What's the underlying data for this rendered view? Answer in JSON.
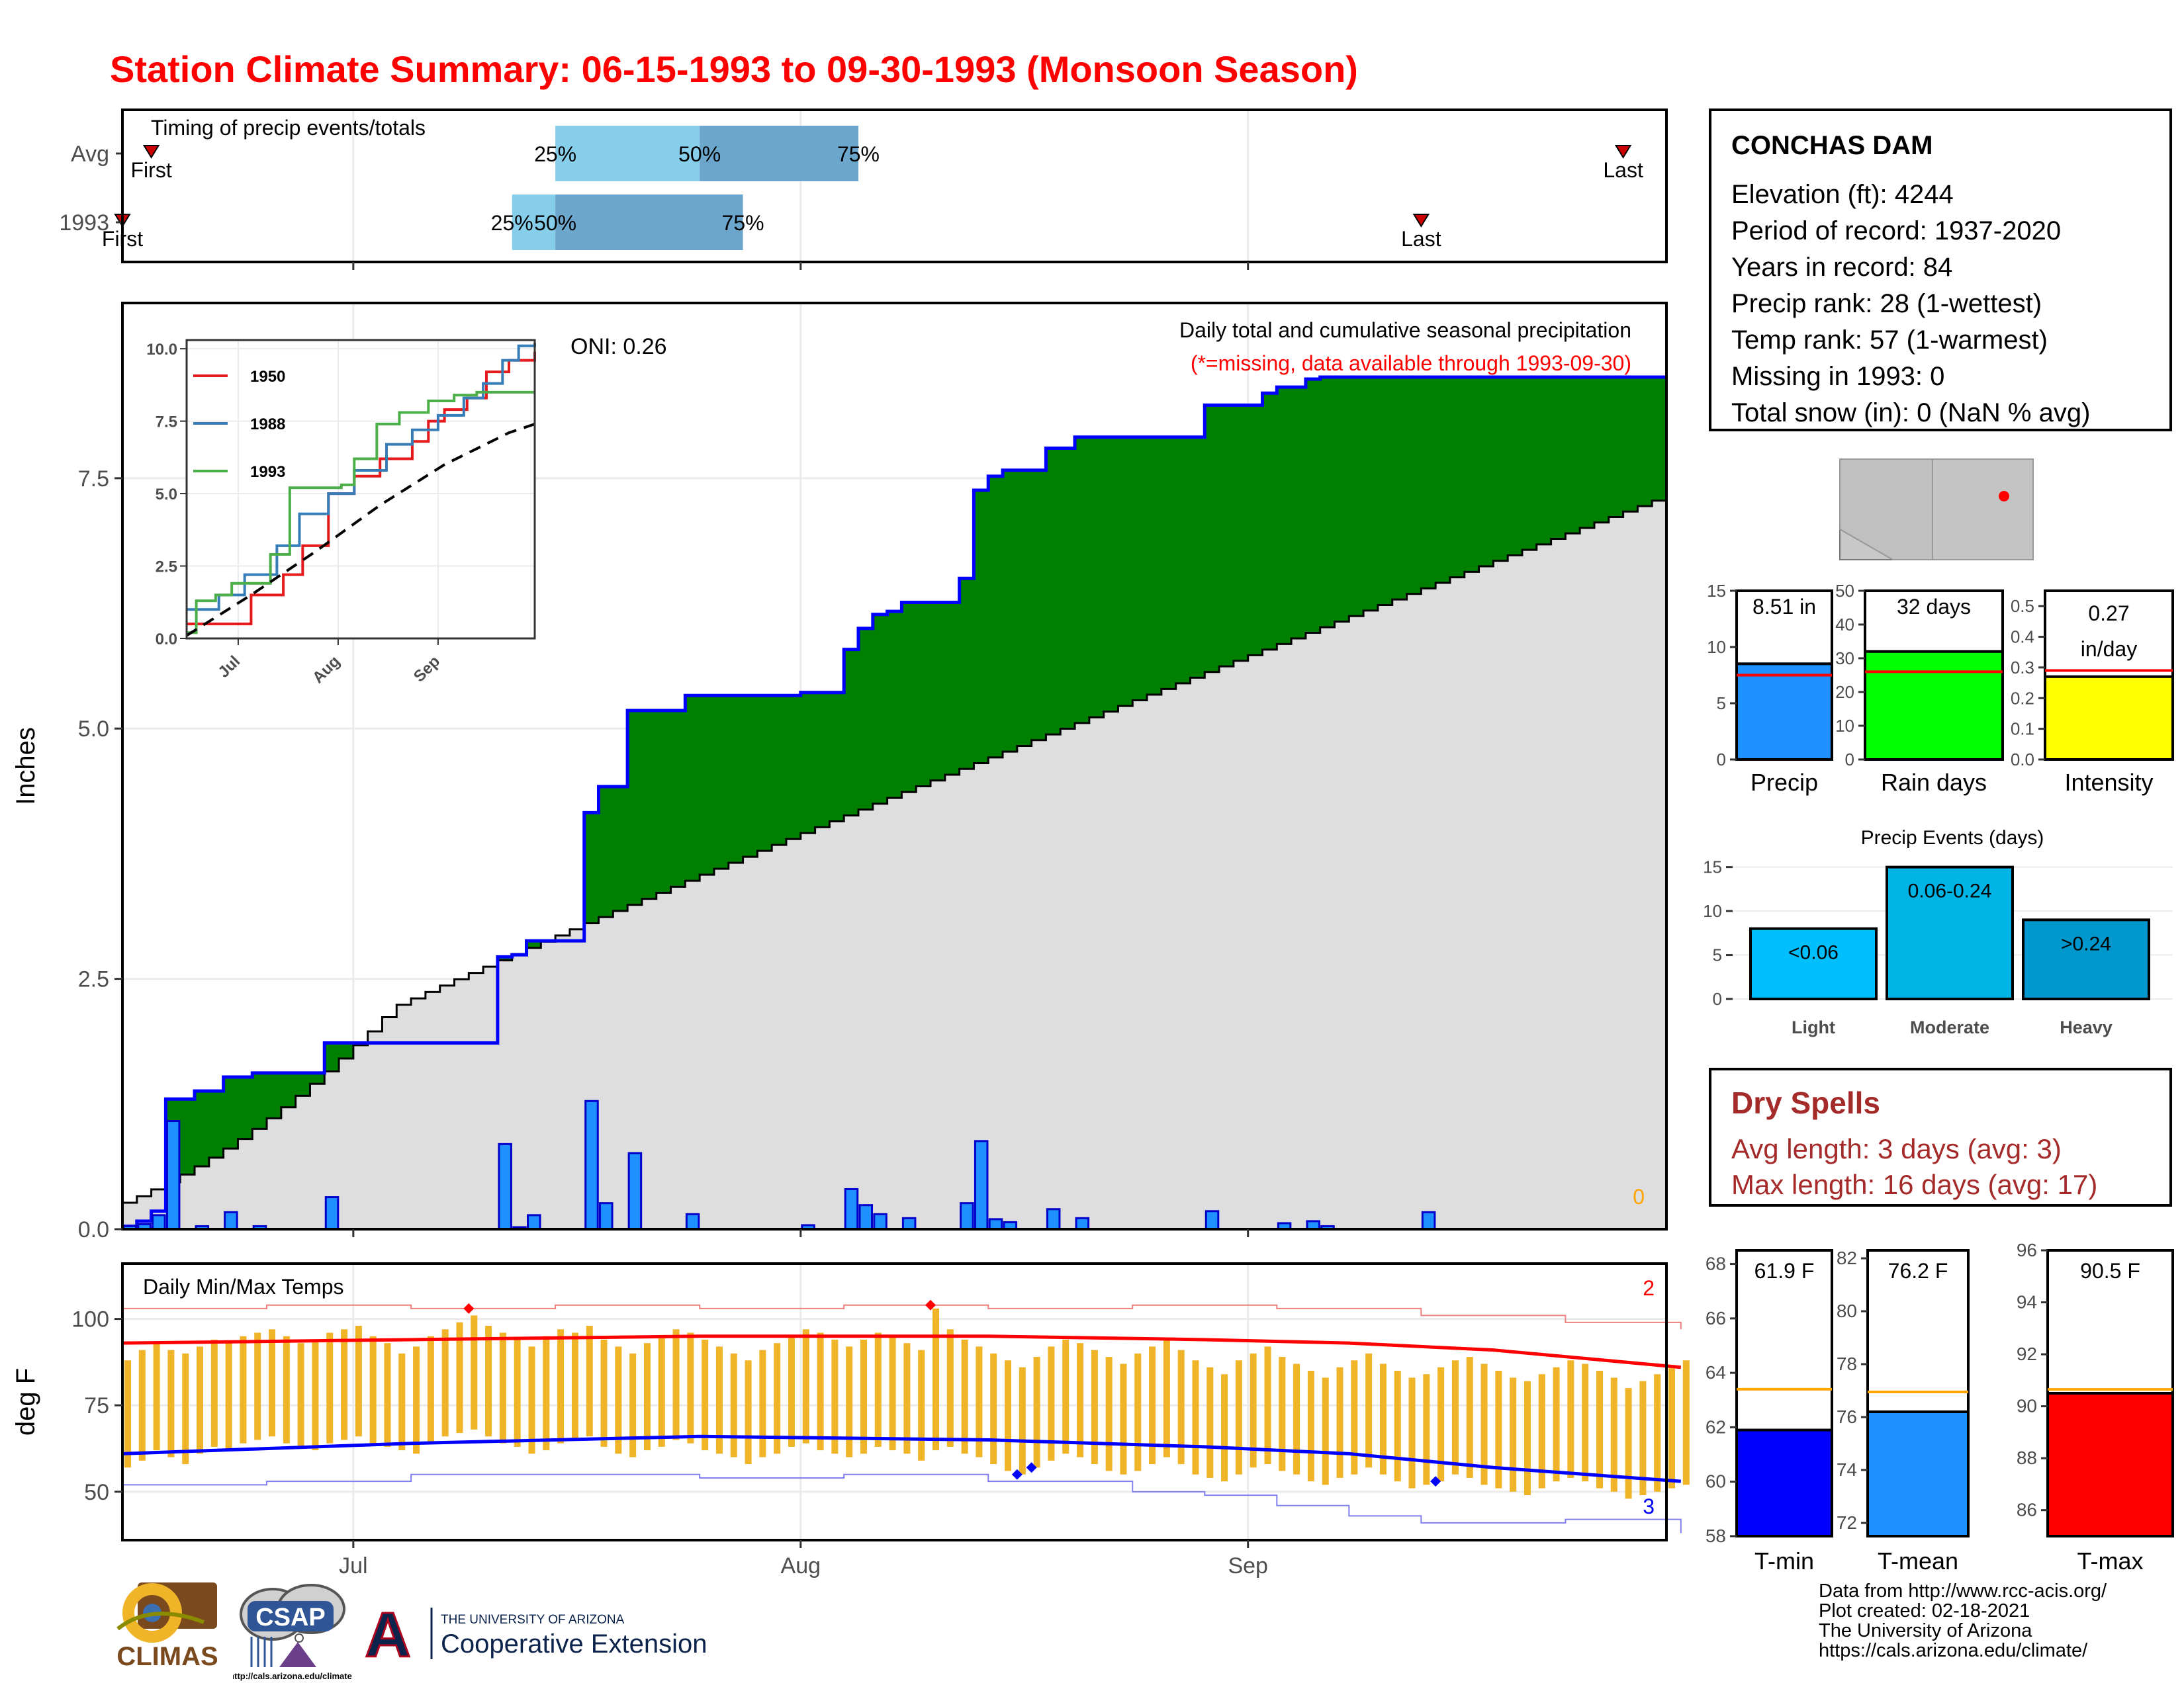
{
  "title": "Station Climate Summary: 06-15-1993 to 09-30-1993 (Monsoon Season)",
  "station": {
    "name": "CONCHAS DAM",
    "rows": [
      "Elevation (ft): 4244",
      "Period of record: 1937-2020",
      "Years in record: 84",
      "Precip rank: 28 (1-wettest)",
      "Temp rank: 57 (1-warmest)",
      "Missing in 1993: 0",
      "Total snow (in): 0 (NaN % avg)"
    ]
  },
  "dry_spells": {
    "heading": "Dry Spells",
    "avg": "Avg length: 3 days (avg: 3)",
    "max": "Max length: 16 days (avg: 17)"
  },
  "credits": [
    "Data from http://www.rcc-acis.org/",
    "Plot created: 02-18-2021",
    "The University of Arizona",
    "https://cals.arizona.edu/climate/"
  ],
  "logos": {
    "climas": "CLIMAS",
    "csap": "CSAP",
    "csap_url": "http://cals.arizona.edu/climate",
    "ua_letter": "A",
    "ua_line1": "THE UNIVERSITY OF ARIZONA",
    "ua_line2": "Cooperative Extension"
  },
  "colors": {
    "title": "#ff0000",
    "green": "#008000",
    "blue_line": "#0000ff",
    "bar": "#1e90ff",
    "light_blue": "#87ceeb",
    "mid_blue": "#6ca6cd",
    "climo_gray": "#dedede",
    "temp_bar": "#f0b429",
    "dry": "#a52a2a"
  },
  "chart_data": [
    {
      "type": "bar",
      "id": "timing",
      "title": "Timing of precip events/totals",
      "rows": [
        "Avg",
        "1993"
      ],
      "x_range": [
        "06-15",
        "09-30"
      ],
      "series": [
        {
          "name": "Avg",
          "first": "06-17",
          "p25": "07-15",
          "p50": "07-25",
          "p75": "08-05",
          "last": "09-27",
          "labels": {
            "first": "First",
            "p25": "25%",
            "p50": "50%",
            "p75": "75%",
            "last": "Last"
          }
        },
        {
          "name": "1993",
          "first": "06-15",
          "p25": "07-12",
          "p50": "07-15",
          "p75": "07-28",
          "last": "09-13",
          "labels": {
            "first": "First",
            "p25": "25%",
            "p50": "50%",
            "p75": "75%",
            "last": "Last"
          }
        }
      ]
    },
    {
      "type": "area",
      "id": "precip_main",
      "title": "Daily total and cumulative seasonal precipitation",
      "subtitle": "(*=missing, data available through 1993-09-30)",
      "oni": "ONI: 0.26",
      "ylabel": "Inches",
      "ylim": [
        0,
        9.25
      ],
      "yticks": [
        0.0,
        2.5,
        5.0,
        7.5
      ],
      "ytick_labels": [
        "0.0",
        "2.5",
        "5.0",
        "7.5"
      ],
      "xticks": [
        "Jul",
        "Aug",
        "Sep"
      ],
      "x_start": "06-15",
      "x_end": "09-30",
      "missing_count_label": "0",
      "climo_end": 7.33,
      "cumulative_steps": [
        {
          "day": "06-15",
          "value": 0.03
        },
        {
          "day": "06-16",
          "value": 0.08
        },
        {
          "day": "06-17",
          "value": 0.18
        },
        {
          "day": "06-18",
          "value": 1.3
        },
        {
          "day": "06-20",
          "value": 1.38
        },
        {
          "day": "06-22",
          "value": 1.52
        },
        {
          "day": "06-24",
          "value": 1.56
        },
        {
          "day": "06-29",
          "value": 1.86
        },
        {
          "day": "07-11",
          "value": 2.72
        },
        {
          "day": "07-12",
          "value": 2.74
        },
        {
          "day": "07-13",
          "value": 2.88
        },
        {
          "day": "07-17",
          "value": 4.16
        },
        {
          "day": "07-18",
          "value": 4.42
        },
        {
          "day": "07-20",
          "value": 5.18
        },
        {
          "day": "07-24",
          "value": 5.33
        },
        {
          "day": "08-01",
          "value": 5.36
        },
        {
          "day": "08-04",
          "value": 5.79
        },
        {
          "day": "08-05",
          "value": 6.0
        },
        {
          "day": "08-06",
          "value": 6.14
        },
        {
          "day": "08-07",
          "value": 6.17
        },
        {
          "day": "08-08",
          "value": 6.26
        },
        {
          "day": "08-12",
          "value": 6.5
        },
        {
          "day": "08-13",
          "value": 7.38
        },
        {
          "day": "08-14",
          "value": 7.52
        },
        {
          "day": "08-15",
          "value": 7.58
        },
        {
          "day": "08-18",
          "value": 7.8
        },
        {
          "day": "08-20",
          "value": 7.91
        },
        {
          "day": "08-29",
          "value": 8.23
        },
        {
          "day": "09-02",
          "value": 8.35
        },
        {
          "day": "09-03",
          "value": 8.41
        },
        {
          "day": "09-05",
          "value": 8.49
        },
        {
          "day": "09-06",
          "value": 8.51
        },
        {
          "day": "09-13",
          "value": 8.51
        }
      ],
      "daily_bars": [
        {
          "day": "06-15",
          "value": 0.03
        },
        {
          "day": "06-16",
          "value": 0.05
        },
        {
          "day": "06-17",
          "value": 0.14
        },
        {
          "day": "06-18",
          "value": 1.08
        },
        {
          "day": "06-20",
          "value": 0.03
        },
        {
          "day": "06-22",
          "value": 0.17
        },
        {
          "day": "06-24",
          "value": 0.03
        },
        {
          "day": "06-29",
          "value": 0.32
        },
        {
          "day": "07-11",
          "value": 0.85
        },
        {
          "day": "07-12",
          "value": 0.02
        },
        {
          "day": "07-13",
          "value": 0.14
        },
        {
          "day": "07-17",
          "value": 1.28
        },
        {
          "day": "07-18",
          "value": 0.26
        },
        {
          "day": "07-20",
          "value": 0.76
        },
        {
          "day": "07-24",
          "value": 0.15
        },
        {
          "day": "08-01",
          "value": 0.04
        },
        {
          "day": "08-04",
          "value": 0.4
        },
        {
          "day": "08-05",
          "value": 0.24
        },
        {
          "day": "08-06",
          "value": 0.15
        },
        {
          "day": "08-08",
          "value": 0.11
        },
        {
          "day": "08-12",
          "value": 0.26
        },
        {
          "day": "08-13",
          "value": 0.88
        },
        {
          "day": "08-14",
          "value": 0.1
        },
        {
          "day": "08-15",
          "value": 0.07
        },
        {
          "day": "08-18",
          "value": 0.2
        },
        {
          "day": "08-20",
          "value": 0.11
        },
        {
          "day": "08-29",
          "value": 0.18
        },
        {
          "day": "09-03",
          "value": 0.06
        },
        {
          "day": "09-05",
          "value": 0.08
        },
        {
          "day": "09-06",
          "value": 0.03
        },
        {
          "day": "09-13",
          "value": 0.17
        }
      ]
    },
    {
      "type": "line",
      "id": "inset",
      "ylim": [
        0,
        10.3
      ],
      "yticks": [
        "0.0",
        "2.5",
        "5.0",
        "7.5",
        "10.0"
      ],
      "xticks": [
        "Jul",
        "Aug",
        "Sep"
      ],
      "series": [
        {
          "name": "1950",
          "color": "#e41a1c",
          "points": [
            [
              0,
              0.5
            ],
            [
              16,
              0.5
            ],
            [
              20,
              1.5
            ],
            [
              30,
              2.2
            ],
            [
              36,
              3.2
            ],
            [
              44,
              5.0
            ],
            [
              52,
              5.6
            ],
            [
              60,
              6.2
            ],
            [
              70,
              6.8
            ],
            [
              75,
              7.5
            ],
            [
              80,
              7.9
            ],
            [
              87,
              8.3
            ],
            [
              93,
              9.2
            ],
            [
              100,
              9.6
            ],
            [
              108,
              9.9
            ]
          ]
        },
        {
          "name": "1988",
          "color": "#377eb8",
          "points": [
            [
              0,
              1.0
            ],
            [
              10,
              1.5
            ],
            [
              18,
              2.2
            ],
            [
              28,
              3.2
            ],
            [
              35,
              4.3
            ],
            [
              44,
              5.0
            ],
            [
              52,
              5.8
            ],
            [
              62,
              6.7
            ],
            [
              70,
              7.2
            ],
            [
              78,
              7.7
            ],
            [
              86,
              8.3
            ],
            [
              92,
              8.8
            ],
            [
              98,
              9.6
            ],
            [
              103,
              10.1
            ],
            [
              108,
              10.2
            ]
          ]
        },
        {
          "name": "1993",
          "color": "#4daf4a",
          "points": [
            [
              0,
              0.2
            ],
            [
              3,
              1.3
            ],
            [
              9,
              1.5
            ],
            [
              14,
              1.9
            ],
            [
              26,
              2.9
            ],
            [
              32,
              5.2
            ],
            [
              48,
              5.3
            ],
            [
              52,
              6.2
            ],
            [
              59,
              7.4
            ],
            [
              66,
              7.8
            ],
            [
              75,
              8.2
            ],
            [
              83,
              8.4
            ],
            [
              90,
              8.5
            ],
            [
              108,
              8.5
            ]
          ]
        },
        {
          "name": "Average",
          "color": "#000000",
          "dash": true,
          "points": [
            [
              0,
              0.1
            ],
            [
              20,
              1.5
            ],
            [
              40,
              3.0
            ],
            [
              60,
              4.6
            ],
            [
              80,
              6.0
            ],
            [
              100,
              7.1
            ],
            [
              108,
              7.4
            ]
          ]
        }
      ]
    },
    {
      "type": "line",
      "id": "temps",
      "title": "Daily Min/Max Temps",
      "ylabel": "deg F",
      "ylim": [
        36,
        116
      ],
      "yticks": [
        50,
        75,
        100
      ],
      "xticks": [
        "Jul",
        "Aug",
        "Sep"
      ],
      "record_high_count": "2",
      "record_low_count": "3",
      "avg_max": [
        [
          0,
          93
        ],
        [
          20,
          94
        ],
        [
          40,
          95
        ],
        [
          60,
          95
        ],
        [
          75,
          94
        ],
        [
          85,
          93
        ],
        [
          95,
          91
        ],
        [
          108,
          86
        ]
      ],
      "avg_min": [
        [
          0,
          61
        ],
        [
          20,
          64
        ],
        [
          40,
          66
        ],
        [
          60,
          65
        ],
        [
          75,
          63
        ],
        [
          85,
          61
        ],
        [
          95,
          57
        ],
        [
          108,
          53
        ]
      ],
      "record_max": [
        [
          0,
          103
        ],
        [
          10,
          104
        ],
        [
          20,
          103
        ],
        [
          30,
          104
        ],
        [
          40,
          103
        ],
        [
          50,
          104
        ],
        [
          60,
          103
        ],
        [
          70,
          104
        ],
        [
          80,
          103
        ],
        [
          90,
          101
        ],
        [
          100,
          99
        ],
        [
          108,
          97
        ]
      ],
      "record_min": [
        [
          0,
          52
        ],
        [
          10,
          53
        ],
        [
          20,
          55
        ],
        [
          30,
          55
        ],
        [
          40,
          54
        ],
        [
          50,
          55
        ],
        [
          60,
          53
        ],
        [
          70,
          50
        ],
        [
          75,
          49
        ],
        [
          80,
          46
        ],
        [
          85,
          43
        ],
        [
          90,
          41
        ],
        [
          100,
          42
        ],
        [
          108,
          38
        ]
      ],
      "record_high_days": [
        24,
        56
      ],
      "record_low_days": [
        62,
        63,
        91
      ],
      "daily_max": [
        88,
        91,
        93,
        91,
        90,
        92,
        94,
        93,
        95,
        96,
        97,
        95,
        93,
        94,
        96,
        97,
        98,
        95,
        93,
        90,
        92,
        95,
        97,
        99,
        101,
        98,
        96,
        94,
        92,
        95,
        97,
        96,
        98,
        94,
        92,
        90,
        93,
        95,
        97,
        96,
        94,
        92,
        90,
        88,
        91,
        93,
        95,
        97,
        96,
        94,
        92,
        94,
        96,
        95,
        93,
        91,
        103,
        97,
        94,
        92,
        90,
        88,
        86,
        89,
        92,
        94,
        93,
        91,
        89,
        87,
        90,
        92,
        94,
        91,
        88,
        86,
        84,
        88,
        90,
        92,
        89,
        87,
        85,
        83,
        86,
        88,
        90,
        87,
        85,
        83,
        84,
        86,
        88,
        89,
        87,
        85,
        83,
        82,
        84,
        86,
        88,
        87,
        85,
        83,
        80,
        82,
        84,
        86,
        88
      ],
      "daily_min": [
        57,
        59,
        62,
        60,
        58,
        61,
        63,
        62,
        64,
        65,
        66,
        64,
        63,
        62,
        64,
        65,
        66,
        64,
        63,
        62,
        61,
        64,
        66,
        67,
        68,
        66,
        64,
        63,
        61,
        62,
        64,
        65,
        66,
        63,
        61,
        60,
        62,
        63,
        65,
        64,
        62,
        61,
        60,
        58,
        60,
        61,
        63,
        64,
        62,
        61,
        60,
        61,
        63,
        62,
        61,
        59,
        62,
        63,
        61,
        60,
        58,
        56,
        55,
        57,
        59,
        61,
        60,
        58,
        56,
        55,
        56,
        58,
        60,
        58,
        55,
        54,
        53,
        55,
        57,
        58,
        56,
        55,
        53,
        52,
        54,
        55,
        57,
        55,
        53,
        51,
        52,
        53,
        55,
        54,
        52,
        51,
        50,
        49,
        51,
        53,
        54,
        53,
        51,
        50,
        48,
        49,
        50,
        51,
        52
      ]
    },
    {
      "type": "bar",
      "id": "precip_total",
      "label": "8.51 in",
      "xlabel": "Precip",
      "value": 8.51,
      "avg": 7.5,
      "ylim": [
        0,
        15
      ],
      "yticks": [
        0,
        5,
        10,
        15
      ]
    },
    {
      "type": "bar",
      "id": "rain_days",
      "label": "32 days",
      "xlabel": "Rain days",
      "value": 32,
      "avg": 26,
      "ylim": [
        0,
        50
      ],
      "yticks": [
        0,
        10,
        20,
        30,
        40,
        50
      ]
    },
    {
      "type": "bar",
      "id": "intensity",
      "label": "0.27 in/day",
      "label_lines": [
        "0.27",
        "in/day"
      ],
      "xlabel": "Intensity",
      "value": 0.27,
      "avg": 0.29,
      "ylim": [
        0,
        0.55
      ],
      "yticks": [
        "0.0",
        "0.1",
        "0.2",
        "0.3",
        "0.4",
        "0.5"
      ]
    },
    {
      "type": "bar",
      "id": "events",
      "title": "Precip Events (days)",
      "categories": [
        "Light",
        "Moderate",
        "Heavy"
      ],
      "bar_labels": [
        "<0.06",
        "0.06-0.24",
        ">0.24"
      ],
      "values": [
        8,
        15,
        9
      ],
      "ylim": [
        0,
        15.5
      ],
      "yticks": [
        0,
        5,
        10,
        15
      ]
    },
    {
      "type": "bar",
      "id": "tmin",
      "label": "61.9 F",
      "xlabel": "T-min",
      "value": 61.9,
      "avg": 63.4,
      "ylim": [
        58,
        68.5
      ],
      "yticks": [
        58,
        60,
        62,
        64,
        66,
        68
      ]
    },
    {
      "type": "bar",
      "id": "tmean",
      "label": "76.2 F",
      "xlabel": "T-mean",
      "value": 76.2,
      "avg": 76.95,
      "ylim": [
        71.5,
        82.3
      ],
      "yticks": [
        72,
        74,
        76,
        78,
        80,
        82
      ]
    },
    {
      "type": "bar",
      "id": "tmax",
      "label": "90.5 F",
      "xlabel": "T-max",
      "value": 90.5,
      "avg": 90.65,
      "ylim": [
        85,
        96
      ],
      "yticks": [
        86,
        88,
        90,
        92,
        94,
        96
      ]
    }
  ]
}
